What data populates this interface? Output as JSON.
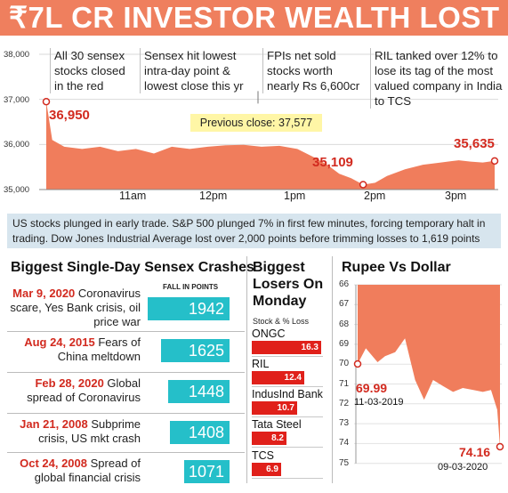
{
  "title": "₹7L CR INVESTOR WEALTH LOST",
  "annotations": [
    "All 30 sensex stocks closed in the red",
    "Sensex hit lowest intra-day point & lowest close this yr",
    "FPIs net sold stocks worth nearly Rs 6,600cr",
    "RIL tanked over 12% to lose its tag of the most valued company in India to TCS"
  ],
  "previous_close_label": "Previous close: 37,577",
  "note": "US stocks plunged in early trade. S&P 500 plunged 7% in first few minutes, forcing temporary halt in trading. Dow Jones Industrial Average lost over 2,000 points before trimming losses to 1,619 points",
  "crashes": {
    "title": "Biggest Single-Day Sensex Crashes",
    "unit_label": "FALL IN POINTS",
    "items": [
      {
        "date": "Mar 9, 2020",
        "desc": "Coronavirus scare, Yes Bank crisis, oil price war",
        "value": 1942,
        "value_label": "1942"
      },
      {
        "date": "Aug 24, 2015",
        "desc": "Fears of China meltdown",
        "value": 1625,
        "value_label": "1625"
      },
      {
        "date": "Feb 28, 2020",
        "desc": "Global spread of Coronavirus",
        "value": 1448,
        "value_label": "1448"
      },
      {
        "date": "Jan 21, 2008",
        "desc": "Subprime crisis, US mkt crash",
        "value": 1408,
        "value_label": "1408"
      },
      {
        "date": "Oct 24, 2008",
        "desc": "Spread of global financial crisis",
        "value": 1071,
        "value_label": "1071"
      }
    ]
  },
  "losers": {
    "title": "Biggest Losers On Monday",
    "subtitle": "Stock & % Loss",
    "items": [
      {
        "name": "ONGC",
        "value": 16.3,
        "value_label": "16.3"
      },
      {
        "name": "RIL",
        "value": 12.4,
        "value_label": "12.4"
      },
      {
        "name": "IndusInd Bank",
        "value": 10.7,
        "value_label": "10.7"
      },
      {
        "name": "Tata Steel",
        "value": 8.2,
        "value_label": "8.2"
      },
      {
        "name": "TCS",
        "value": 6.9,
        "value_label": "6.9"
      }
    ]
  },
  "rupee": {
    "title": "Rupee Vs Dollar",
    "start_value": "69.99",
    "start_date": "11-03-2019",
    "end_value": "74.16",
    "end_date": "09-03-2020"
  },
  "colors": {
    "banner": "#ef7f5e",
    "area": "#f07d5c",
    "accent_red": "#d22a1f",
    "teal": "#25bfc9",
    "loser_red": "#e0201a",
    "note_bg": "#d7e5ee",
    "prev_close_bg": "#fff6a6"
  },
  "chart_data": [
    {
      "type": "area",
      "title": "",
      "xlabel": "",
      "ylabel": "",
      "x_tick_labels": [
        "11am",
        "12pm",
        "1pm",
        "2pm",
        "3pm"
      ],
      "y_tick_labels": [
        "38,000",
        "37,000",
        "36,000",
        "35,000"
      ],
      "ylim": [
        35000,
        38000
      ],
      "xlim": [
        "09:15",
        "15:30"
      ],
      "series": [
        {
          "x": [
            "09:15",
            "09:20",
            "09:30",
            "09:45",
            "10:00",
            "10:15",
            "10:30",
            "10:45",
            "11:00",
            "11:15",
            "11:30",
            "11:45",
            "12:00",
            "12:15",
            "12:30",
            "12:45",
            "13:00",
            "13:10",
            "13:20",
            "13:30",
            "13:40",
            "13:50",
            "14:00",
            "14:15",
            "14:30",
            "14:45",
            "15:00",
            "15:10",
            "15:20",
            "15:30"
          ],
          "values": [
            36950,
            36100,
            35950,
            35900,
            35950,
            35850,
            35900,
            35800,
            35950,
            35900,
            35950,
            35980,
            35990,
            35950,
            35970,
            35900,
            35700,
            35550,
            35350,
            35250,
            35109,
            35150,
            35300,
            35450,
            35550,
            35600,
            35650,
            35620,
            35600,
            35635
          ]
        }
      ],
      "callouts": [
        {
          "x": "09:15",
          "y": 36950,
          "label": "36,950"
        },
        {
          "x": "13:40",
          "y": 35109,
          "label": "35,109"
        },
        {
          "x": "15:30",
          "y": 35635,
          "label": "35,635"
        }
      ],
      "reference_lines": [
        {
          "y": 37577,
          "label": "Previous close: 37,577"
        }
      ]
    },
    {
      "type": "bar",
      "title": "Biggest Single-Day Sensex Crashes",
      "unit": "FALL IN POINTS",
      "categories": [
        "Mar 9, 2020",
        "Aug 24, 2015",
        "Feb 28, 2020",
        "Jan 21, 2008",
        "Oct 24, 2008"
      ],
      "values": [
        1942,
        1625,
        1448,
        1408,
        1071
      ]
    },
    {
      "type": "bar",
      "title": "Biggest Losers On Monday",
      "ylabel": "Stock & % Loss",
      "categories": [
        "ONGC",
        "RIL",
        "IndusInd Bank",
        "Tata Steel",
        "TCS"
      ],
      "values": [
        16.3,
        12.4,
        10.7,
        8.2,
        6.9
      ]
    },
    {
      "type": "area",
      "title": "Rupee Vs Dollar",
      "y_tick_labels": [
        "66",
        "67",
        "68",
        "69",
        "70",
        "71",
        "72",
        "73",
        "74",
        "75"
      ],
      "ylim": [
        66,
        75
      ],
      "y_inverted": true,
      "series": [
        {
          "x": [
            "2019-03-11",
            "2019-04-01",
            "2019-05-01",
            "2019-05-20",
            "2019-06-15",
            "2019-07-10",
            "2019-08-05",
            "2019-08-28",
            "2019-09-20",
            "2019-10-15",
            "2019-11-10",
            "2019-12-05",
            "2020-01-01",
            "2020-01-25",
            "2020-02-15",
            "2020-03-02",
            "2020-03-09"
          ],
          "values": [
            69.99,
            69.2,
            69.9,
            69.6,
            69.4,
            68.7,
            70.8,
            71.8,
            70.8,
            71.1,
            71.4,
            71.2,
            71.3,
            71.4,
            71.3,
            72.3,
            74.16
          ]
        }
      ],
      "callouts": [
        {
          "x": "2019-03-11",
          "y": 69.99,
          "label": "69.99",
          "date": "11-03-2019"
        },
        {
          "x": "2020-03-09",
          "y": 74.16,
          "label": "74.16",
          "date": "09-03-2020"
        }
      ]
    }
  ]
}
